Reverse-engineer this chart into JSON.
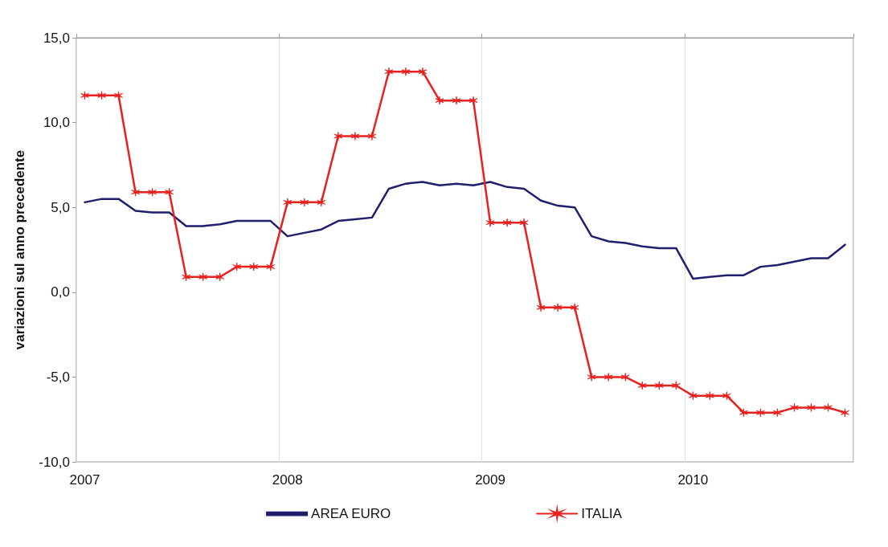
{
  "chart_data": {
    "type": "line",
    "ylabel": "variazioni sul anno precedente",
    "categories": [
      "2007",
      null,
      null,
      null,
      null,
      null,
      null,
      null,
      null,
      null,
      null,
      null,
      "2008",
      null,
      null,
      null,
      null,
      null,
      null,
      null,
      null,
      null,
      null,
      null,
      "2009",
      null,
      null,
      null,
      null,
      null,
      null,
      null,
      null,
      null,
      null,
      null,
      "2010",
      null,
      null,
      null,
      null,
      null,
      null,
      null,
      null,
      null
    ],
    "series": [
      {
        "name": "AREA EURO",
        "color": "#1f1f6e",
        "marker": "none",
        "values": [
          5.3,
          5.5,
          5.5,
          4.8,
          4.7,
          4.7,
          3.9,
          3.9,
          4.0,
          4.2,
          4.2,
          4.2,
          3.3,
          3.5,
          3.7,
          4.2,
          4.3,
          4.4,
          6.1,
          6.4,
          6.5,
          6.3,
          6.4,
          6.3,
          6.5,
          6.2,
          6.1,
          5.4,
          5.1,
          5.0,
          3.3,
          3.0,
          2.9,
          2.7,
          2.6,
          2.6,
          0.8,
          0.9,
          1.0,
          1.0,
          1.5,
          1.6,
          1.8,
          2.0,
          2.0,
          2.8
        ]
      },
      {
        "name": "ITALIA",
        "color": "#e8201e",
        "marker": "cross",
        "values": [
          11.6,
          11.6,
          11.6,
          5.9,
          5.9,
          5.9,
          0.9,
          0.9,
          0.9,
          1.5,
          1.5,
          1.5,
          5.3,
          5.3,
          5.3,
          9.2,
          9.2,
          9.2,
          13.0,
          13.0,
          13.0,
          11.3,
          11.3,
          11.3,
          4.1,
          4.1,
          4.1,
          -0.9,
          -0.9,
          -0.9,
          -5.0,
          -5.0,
          -5.0,
          -5.5,
          -5.5,
          -5.5,
          -6.1,
          -6.1,
          -6.1,
          -7.1,
          -7.1,
          -7.1,
          -6.8,
          -6.8,
          -6.8,
          -7.1
        ]
      }
    ],
    "ylim": [
      -10,
      15
    ],
    "yticks": [
      {
        "value": -10,
        "label": "-10,0"
      },
      {
        "value": -5,
        "label": "-5,0"
      },
      {
        "value": 0,
        "label": "0,0"
      },
      {
        "value": 5,
        "label": "5,0"
      },
      {
        "value": 10,
        "label": "10,0"
      },
      {
        "value": 15,
        "label": "15,0"
      }
    ],
    "grid": "x",
    "legend": "bottom",
    "line_style": "solid"
  }
}
